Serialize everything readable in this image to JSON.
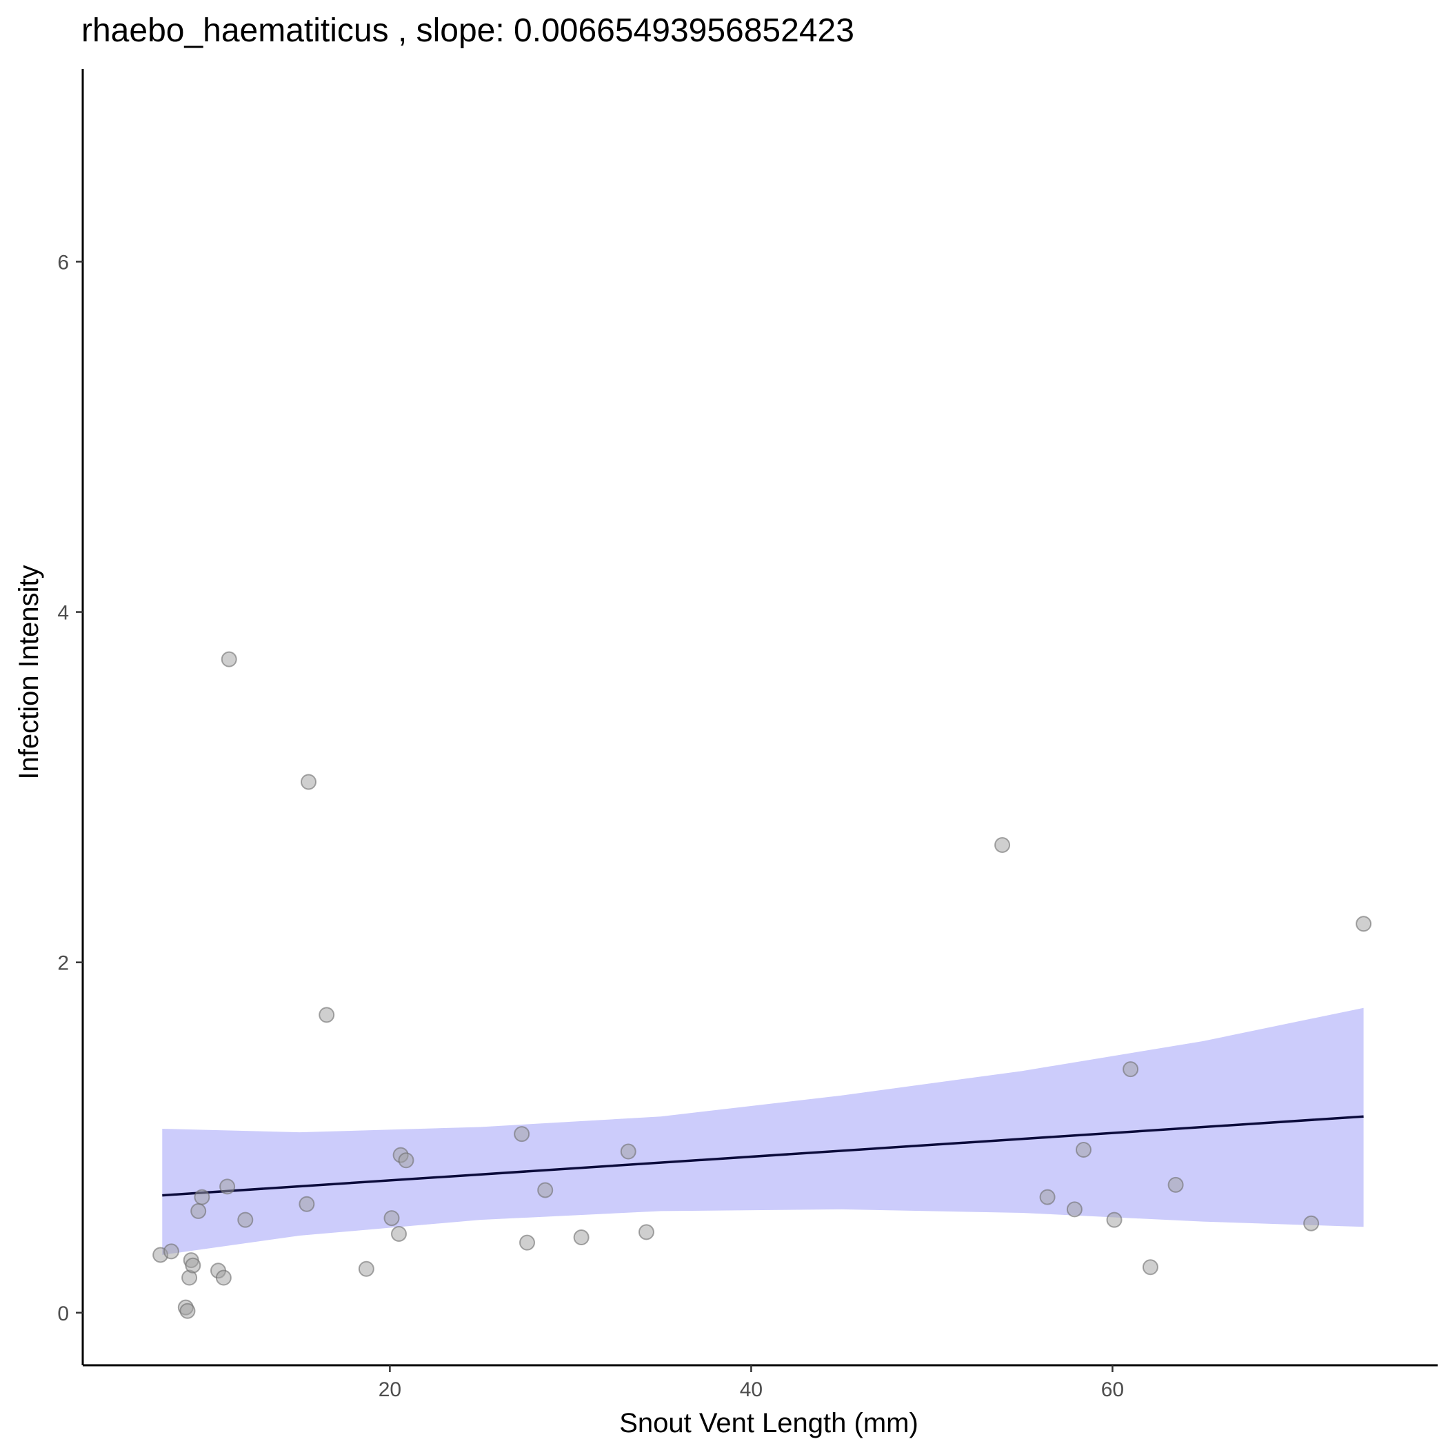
{
  "chart_data": {
    "type": "scatter",
    "title": "rhaebo_haematiticus , slope: 0.00665493956852423",
    "xlabel": "Snout Vent Length (mm)",
    "ylabel": "Infection Intensity",
    "xlim": [
      3.0,
      78.0
    ],
    "ylim": [
      -0.3,
      7.1
    ],
    "x_ticks": [
      20,
      40,
      60
    ],
    "y_ticks": [
      0,
      2,
      4,
      6
    ],
    "grid": false,
    "legend": "none",
    "colors": {
      "point_fill": "#a0a0a0",
      "fit_line": "#0b0b3b",
      "ci_band": "#ccccfb"
    },
    "points": [
      {
        "x": 7.3,
        "y": 0.33
      },
      {
        "x": 7.9,
        "y": 0.35
      },
      {
        "x": 8.7,
        "y": 0.03
      },
      {
        "x": 8.8,
        "y": 0.01
      },
      {
        "x": 8.9,
        "y": 0.2
      },
      {
        "x": 9.0,
        "y": 0.3
      },
      {
        "x": 9.1,
        "y": 0.27
      },
      {
        "x": 9.4,
        "y": 0.58
      },
      {
        "x": 9.6,
        "y": 0.66
      },
      {
        "x": 10.5,
        "y": 0.24
      },
      {
        "x": 10.8,
        "y": 0.2
      },
      {
        "x": 11.0,
        "y": 0.72
      },
      {
        "x": 11.1,
        "y": 3.73
      },
      {
        "x": 12.0,
        "y": 0.53
      },
      {
        "x": 15.4,
        "y": 0.62
      },
      {
        "x": 15.5,
        "y": 3.03
      },
      {
        "x": 16.5,
        "y": 1.7
      },
      {
        "x": 18.7,
        "y": 0.25
      },
      {
        "x": 20.1,
        "y": 0.54
      },
      {
        "x": 20.5,
        "y": 0.45
      },
      {
        "x": 20.6,
        "y": 0.9
      },
      {
        "x": 20.9,
        "y": 0.87
      },
      {
        "x": 27.3,
        "y": 1.02
      },
      {
        "x": 27.6,
        "y": 0.4
      },
      {
        "x": 28.6,
        "y": 0.7
      },
      {
        "x": 30.6,
        "y": 0.43
      },
      {
        "x": 33.2,
        "y": 0.92
      },
      {
        "x": 34.2,
        "y": 0.46
      },
      {
        "x": 53.9,
        "y": 2.67
      },
      {
        "x": 56.4,
        "y": 0.66
      },
      {
        "x": 57.9,
        "y": 0.59
      },
      {
        "x": 58.4,
        "y": 0.93
      },
      {
        "x": 60.1,
        "y": 0.53
      },
      {
        "x": 61.0,
        "y": 1.39
      },
      {
        "x": 62.1,
        "y": 0.26
      },
      {
        "x": 63.5,
        "y": 0.73
      },
      {
        "x": 71.0,
        "y": 0.51
      },
      {
        "x": 73.9,
        "y": 2.22
      }
    ],
    "fit": {
      "x_start": 7.4,
      "y_start": 0.67,
      "x_end": 73.9,
      "y_end": 1.12
    },
    "ci_band": [
      {
        "x": 7.4,
        "lower": 0.33,
        "upper": 1.05
      },
      {
        "x": 15.0,
        "lower": 0.44,
        "upper": 1.03
      },
      {
        "x": 25.0,
        "lower": 0.53,
        "upper": 1.06
      },
      {
        "x": 35.0,
        "lower": 0.58,
        "upper": 1.12
      },
      {
        "x": 45.0,
        "lower": 0.59,
        "upper": 1.24
      },
      {
        "x": 55.0,
        "lower": 0.57,
        "upper": 1.38
      },
      {
        "x": 65.0,
        "lower": 0.52,
        "upper": 1.55
      },
      {
        "x": 73.9,
        "lower": 0.49,
        "upper": 1.74
      }
    ]
  }
}
